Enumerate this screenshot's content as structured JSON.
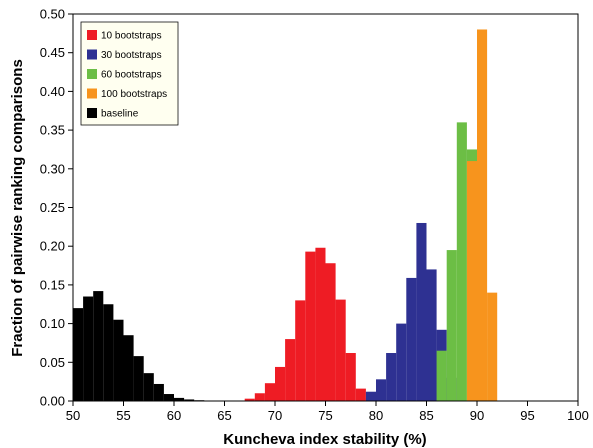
{
  "chart_data": {
    "type": "bar",
    "xlabel": "Kuncheva index stability (%)",
    "ylabel": "Fraction of pairwise ranking comparisons",
    "xlim": [
      50,
      100
    ],
    "ylim": [
      0,
      0.5
    ],
    "xticks": [
      "50",
      "55",
      "60",
      "65",
      "70",
      "75",
      "80",
      "85",
      "90",
      "95",
      "100"
    ],
    "yticks": [
      "0.00",
      "0.05",
      "0.10",
      "0.15",
      "0.20",
      "0.25",
      "0.30",
      "0.35",
      "0.40",
      "0.45",
      "0.50"
    ],
    "grid": false,
    "legend_position": "top-left",
    "bin_width": 1,
    "series": [
      {
        "name": "baseline",
        "color": "#000000",
        "bins": [
          [
            50,
            0.12
          ],
          [
            51,
            0.135
          ],
          [
            52,
            0.142
          ],
          [
            53,
            0.125
          ],
          [
            54,
            0.105
          ],
          [
            55,
            0.085
          ],
          [
            56,
            0.058
          ],
          [
            57,
            0.036
          ],
          [
            58,
            0.022
          ],
          [
            59,
            0.009
          ],
          [
            60,
            0.004
          ],
          [
            61,
            0.002
          ],
          [
            62,
            0.001
          ]
        ]
      },
      {
        "name": "10 bootstraps",
        "color": "#ee1c24",
        "bins": [
          [
            67,
            0.003
          ],
          [
            68,
            0.01
          ],
          [
            69,
            0.023
          ],
          [
            70,
            0.044
          ],
          [
            71,
            0.08
          ],
          [
            72,
            0.13
          ],
          [
            73,
            0.193
          ],
          [
            74,
            0.198
          ],
          [
            75,
            0.178
          ],
          [
            76,
            0.131
          ],
          [
            77,
            0.062
          ],
          [
            78,
            0.016
          ],
          [
            79,
            0.004
          ]
        ]
      },
      {
        "name": "30 bootstraps",
        "color": "#2e3192",
        "bins": [
          [
            79,
            0.012
          ],
          [
            80,
            0.028
          ],
          [
            81,
            0.062
          ],
          [
            82,
            0.1
          ],
          [
            83,
            0.159
          ],
          [
            84,
            0.23
          ],
          [
            85,
            0.17
          ],
          [
            86,
            0.092
          ],
          [
            87,
            0.03
          ]
        ]
      },
      {
        "name": "60 bootstraps",
        "color": "#6cbe45",
        "bins": [
          [
            86,
            0.065
          ],
          [
            87,
            0.195
          ],
          [
            88,
            0.36
          ],
          [
            89,
            0.325
          ],
          [
            90,
            0.08
          ]
        ]
      },
      {
        "name": "100 bootstraps",
        "color": "#f7941d",
        "bins": [
          [
            89,
            0.31
          ],
          [
            90,
            0.48
          ],
          [
            91,
            0.14
          ]
        ]
      }
    ],
    "legend_order": [
      "10 bootstraps",
      "30 bootstraps",
      "60 bootstraps",
      "100 bootstraps",
      "baseline"
    ],
    "draw_order": [
      "baseline",
      "10 bootstraps",
      "30 bootstraps",
      "60 bootstraps",
      "100 bootstraps"
    ]
  }
}
